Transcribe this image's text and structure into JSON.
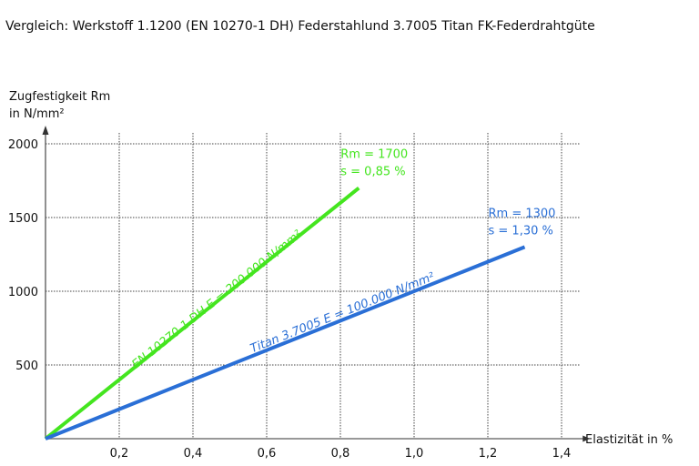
{
  "chart_data": {
    "type": "line",
    "title": "Vergleich:  Werkstoff 1.1200 (EN 10270-1 DH) Federstahlund 3.7005 Titan FK-Federdrahtgüte",
    "ylabel_line1": "Zugfestigkeit Rm",
    "ylabel_line2": "in N/mm²",
    "xlabel": "Elastizität in %",
    "xlim": [
      0,
      1.45
    ],
    "ylim": [
      0,
      2000
    ],
    "xticks": [
      {
        "v": 0.2,
        "label": "0,2"
      },
      {
        "v": 0.4,
        "label": "0,4"
      },
      {
        "v": 0.6,
        "label": "0,6"
      },
      {
        "v": 0.8,
        "label": "0,8"
      },
      {
        "v": 1.0,
        "label": "1,0"
      },
      {
        "v": 1.2,
        "label": "1,2"
      },
      {
        "v": 1.4,
        "label": "1,4"
      }
    ],
    "yticks": [
      {
        "v": 500,
        "label": "500"
      },
      {
        "v": 1000,
        "label": "1000"
      },
      {
        "v": 1500,
        "label": "1500"
      },
      {
        "v": 2000,
        "label": "2000"
      }
    ],
    "grid": true,
    "series": [
      {
        "name": "EN 10270-1 DH   E = 200.000 N/mm²",
        "color": "#44e51f",
        "points": [
          [
            0,
            0
          ],
          [
            0.85,
            1700
          ]
        ],
        "end_label_1": "Rm = 1700",
        "end_label_2": "s = 0,85 %"
      },
      {
        "name": "Titan 3.7005   E = 100.000 N/mm²",
        "color": "#2a6fd6",
        "points": [
          [
            0,
            0
          ],
          [
            1.3,
            1300
          ]
        ],
        "end_label_1": "Rm = 1300",
        "end_label_2": "s = 1,30 %"
      }
    ]
  }
}
